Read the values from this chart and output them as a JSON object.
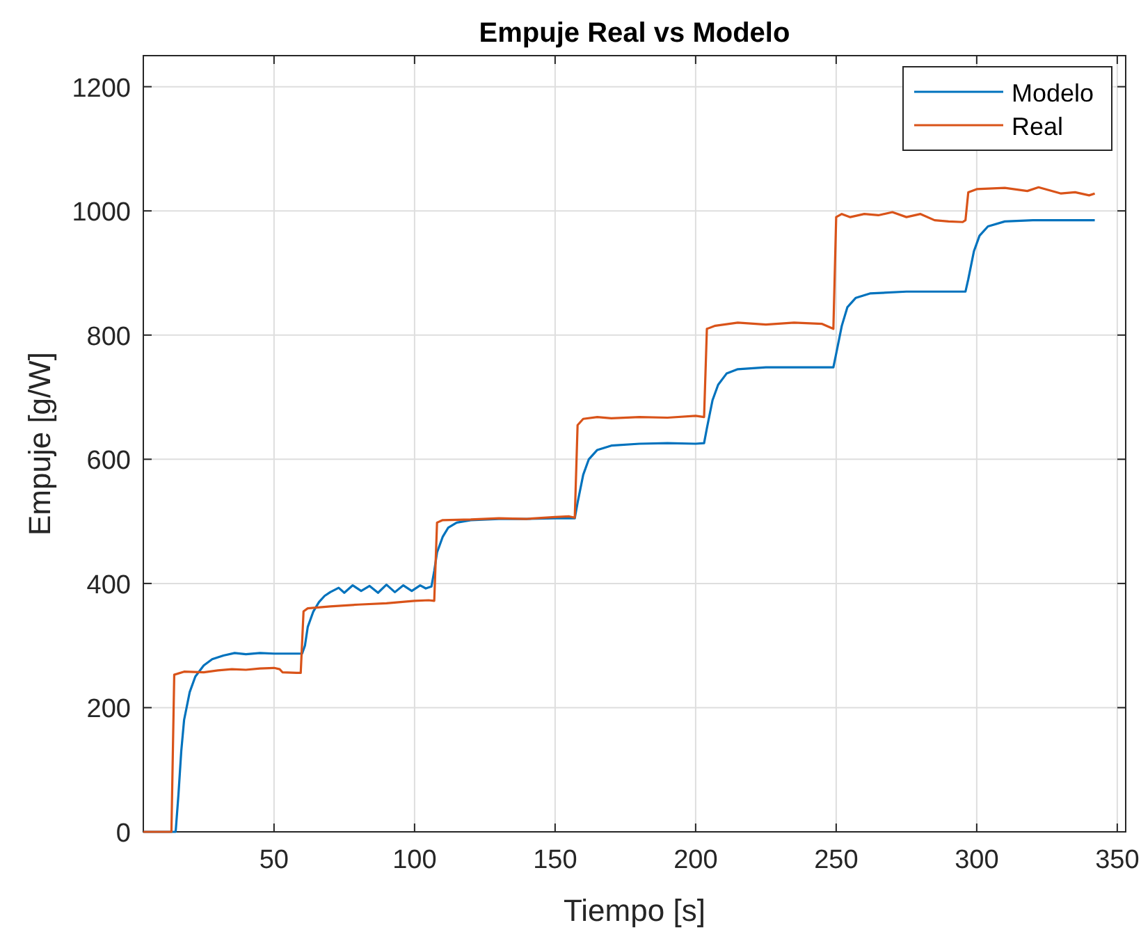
{
  "chart_data": {
    "type": "line",
    "title": "Empuje Real vs Modelo",
    "xlabel": "Tiempo [s]",
    "ylabel": "Empuje [g/W]",
    "xlim": [
      3.5,
      353
    ],
    "xticks": [
      50,
      100,
      150,
      200,
      250,
      300,
      350
    ],
    "ylim": [
      0,
      1250
    ],
    "yticks": [
      0,
      200,
      400,
      600,
      800,
      1000,
      1200
    ],
    "grid": true,
    "legend": "top right",
    "line_style": "solid",
    "series": [
      {
        "name": "Modelo",
        "color": "#0072bd",
        "x": [
          3.5,
          15,
          16,
          17,
          18,
          20,
          22,
          25,
          28,
          32,
          36,
          40,
          45,
          50,
          55,
          60,
          61,
          62,
          64,
          66,
          68,
          70,
          73,
          75,
          78,
          81,
          84,
          87,
          90,
          93,
          96,
          99,
          102,
          104,
          106,
          107,
          108,
          110,
          112,
          115,
          120,
          130,
          140,
          150,
          157,
          158,
          160,
          162,
          165,
          170,
          180,
          190,
          200,
          203,
          204,
          206,
          208,
          211,
          215,
          225,
          240,
          249,
          250,
          252,
          254,
          257,
          262,
          275,
          290,
          296,
          297,
          299,
          301,
          304,
          310,
          320,
          342
        ],
        "values": [
          0,
          0,
          60,
          130,
          180,
          225,
          250,
          268,
          278,
          284,
          288,
          286,
          288,
          287,
          287,
          287,
          300,
          330,
          355,
          370,
          380,
          386,
          393,
          385,
          397,
          388,
          396,
          385,
          398,
          386,
          397,
          388,
          397,
          392,
          395,
          420,
          450,
          475,
          490,
          498,
          502,
          504,
          504,
          505,
          505,
          530,
          575,
          600,
          615,
          622,
          625,
          626,
          625,
          626,
          650,
          695,
          720,
          738,
          745,
          748,
          748,
          748,
          770,
          815,
          845,
          860,
          867,
          870,
          870,
          870,
          890,
          935,
          960,
          975,
          983,
          985,
          985
        ]
      },
      {
        "name": "Real",
        "color": "#d95319",
        "x": [
          3.5,
          13.5,
          14.5,
          18,
          25,
          30,
          35,
          40,
          45,
          50,
          52,
          53,
          58,
          59.5,
          60.5,
          62,
          70,
          80,
          90,
          100,
          105,
          107,
          108,
          110,
          120,
          130,
          140,
          150,
          155,
          157,
          158,
          160,
          165,
          170,
          180,
          190,
          200,
          203,
          204,
          207,
          215,
          225,
          235,
          245,
          248,
          249,
          250,
          252,
          255,
          260,
          265,
          270,
          275,
          280,
          285,
          290,
          295,
          296,
          297,
          300,
          310,
          318,
          322,
          330,
          335,
          340,
          342
        ],
        "values": [
          0,
          0,
          253,
          258,
          257,
          260,
          262,
          261,
          263,
          264,
          262,
          257,
          256,
          256,
          355,
          360,
          363,
          366,
          368,
          372,
          373,
          372,
          498,
          502,
          503,
          505,
          504,
          507,
          508,
          506,
          655,
          665,
          668,
          666,
          668,
          667,
          670,
          668,
          810,
          815,
          820,
          817,
          820,
          818,
          812,
          810,
          990,
          995,
          990,
          995,
          993,
          998,
          990,
          995,
          985,
          983,
          982,
          985,
          1030,
          1035,
          1037,
          1032,
          1038,
          1028,
          1030,
          1025,
          1028
        ]
      }
    ]
  }
}
